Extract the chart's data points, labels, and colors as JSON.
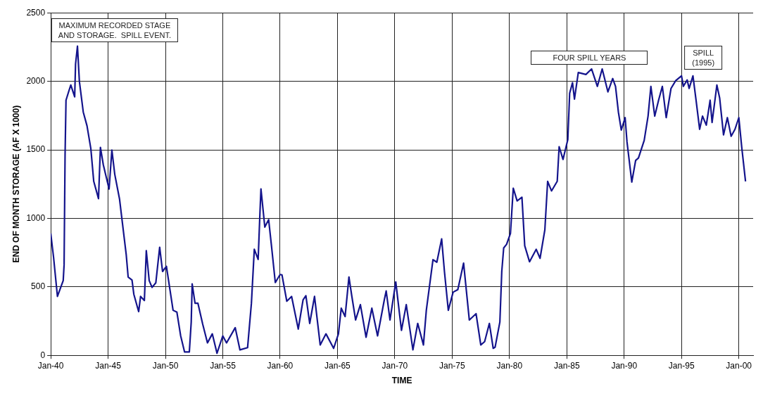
{
  "chart_data": {
    "type": "line",
    "xlabel": "TIME",
    "ylabel": "END OF MONTH STORAGE (AF X 1000)",
    "xlim": [
      "1940-01",
      "2001-04"
    ],
    "ylim": [
      0,
      2500
    ],
    "xticks": [
      {
        "value": "1940-01",
        "label": "Jan-40"
      },
      {
        "value": "1945-01",
        "label": "Jan-45"
      },
      {
        "value": "1950-01",
        "label": "Jan-50"
      },
      {
        "value": "1955-01",
        "label": "Jan-55"
      },
      {
        "value": "1960-01",
        "label": "Jan-60"
      },
      {
        "value": "1965-01",
        "label": "Jan-65"
      },
      {
        "value": "1970-01",
        "label": "Jan-70"
      },
      {
        "value": "1975-01",
        "label": "Jan-75"
      },
      {
        "value": "1980-01",
        "label": "Jan-80"
      },
      {
        "value": "1985-01",
        "label": "Jan-85"
      },
      {
        "value": "1990-01",
        "label": "Jan-90"
      },
      {
        "value": "1995-01",
        "label": "Jan-95"
      },
      {
        "value": "2000-01",
        "label": "Jan-00"
      }
    ],
    "yticks": [
      0,
      500,
      1000,
      1500,
      2000,
      2500
    ],
    "grid": true,
    "legend": false,
    "marker": "none",
    "line_style": "solid",
    "x": [
      "1940-01",
      "1940-04",
      "1940-08",
      "1941-02",
      "1941-03",
      "1941-04",
      "1941-05",
      "1941-08",
      "1941-10",
      "1942-02",
      "1942-03",
      "1942-05",
      "1942-07",
      "1942-11",
      "1943-03",
      "1943-07",
      "1943-10",
      "1944-03",
      "1944-05",
      "1944-08",
      "1945-02",
      "1945-05",
      "1945-08",
      "1946-01",
      "1946-04",
      "1946-08",
      "1946-10",
      "1947-02",
      "1947-04",
      "1947-09",
      "1947-11",
      "1948-03",
      "1948-05",
      "1948-08",
      "1948-11",
      "1949-03",
      "1949-07",
      "1949-10",
      "1950-02",
      "1950-09",
      "1951-01",
      "1951-05",
      "1951-09",
      "1952-02",
      "1952-04",
      "1952-05",
      "1952-08",
      "1952-11",
      "1953-04",
      "1953-09",
      "1954-02",
      "1954-07",
      "1955-01",
      "1955-05",
      "1956-02",
      "1956-07",
      "1957-03",
      "1957-07",
      "1957-10",
      "1958-02",
      "1958-04",
      "1958-05",
      "1958-09",
      "1959-01",
      "1959-04",
      "1959-08",
      "1960-01",
      "1960-03",
      "1960-08",
      "1961-01",
      "1961-08",
      "1962-01",
      "1962-04",
      "1962-08",
      "1963-01",
      "1963-07",
      "1964-01",
      "1964-09",
      "1965-02",
      "1965-05",
      "1965-09",
      "1966-01",
      "1966-04",
      "1966-08",
      "1967-01",
      "1967-07",
      "1968-01",
      "1968-07",
      "1969-02",
      "1969-04",
      "1969-08",
      "1970-02",
      "1970-08",
      "1971-01",
      "1971-08",
      "1972-01",
      "1972-07",
      "1972-10",
      "1973-05",
      "1973-09",
      "1974-02",
      "1974-05",
      "1974-09",
      "1975-02",
      "1975-07",
      "1976-01",
      "1976-07",
      "1977-02",
      "1977-07",
      "1977-11",
      "1978-04",
      "1978-08",
      "1978-10",
      "1979-03",
      "1979-05",
      "1979-07",
      "1979-10",
      "1980-02",
      "1980-05",
      "1980-09",
      "1981-02",
      "1981-05",
      "1981-10",
      "1982-05",
      "1982-09",
      "1983-02",
      "1983-05",
      "1983-09",
      "1984-03",
      "1984-05",
      "1984-09",
      "1985-02",
      "1985-04",
      "1985-07",
      "1985-09",
      "1986-01",
      "1986-09",
      "1987-03",
      "1987-09",
      "1988-02",
      "1988-08",
      "1989-01",
      "1989-04",
      "1989-07",
      "1989-10",
      "1990-02",
      "1990-04",
      "1990-09",
      "1991-01",
      "1991-04",
      "1991-10",
      "1992-02",
      "1992-05",
      "1992-09",
      "1993-01",
      "1993-05",
      "1993-09",
      "1994-02",
      "1994-07",
      "1995-01",
      "1995-03",
      "1995-07",
      "1995-09",
      "1996-01",
      "1996-04",
      "1996-08",
      "1996-11",
      "1997-03",
      "1997-07",
      "1997-09",
      "1998-02",
      "1998-05",
      "1998-09",
      "1999-01",
      "1999-05",
      "1999-09",
      "2000-01",
      "2000-04",
      "2000-08"
    ],
    "series": [
      {
        "color": "#14148c",
        "values": [
          890,
          713,
          430,
          546,
          660,
          1457,
          1862,
          1930,
          1973,
          1887,
          2125,
          2257,
          2000,
          1776,
          1675,
          1508,
          1270,
          1144,
          1518,
          1391,
          1214,
          1498,
          1321,
          1139,
          967,
          734,
          572,
          550,
          445,
          319,
          430,
          400,
          764,
          546,
          496,
          530,
          789,
          612,
          650,
          329,
          315,
          142,
          25,
          25,
          243,
          521,
          380,
          380,
          228,
          91,
          157,
          15,
          142,
          91,
          202,
          40,
          56,
          380,
          774,
          700,
          1052,
          1214,
          936,
          990,
          800,
          531,
          590,
          587,
          395,
          430,
          192,
          405,
          435,
          233,
          430,
          76,
          157,
          51,
          157,
          344,
          283,
          572,
          435,
          258,
          370,
          132,
          344,
          142,
          405,
          470,
          258,
          536,
          182,
          370,
          40,
          233,
          76,
          329,
          698,
          680,
          850,
          612,
          329,
          461,
          480,
          673,
          258,
          304,
          76,
          100,
          233,
          51,
          60,
          243,
          612,
          784,
          810,
          890,
          1220,
          1127,
          1154,
          800,
          683,
          774,
          708,
          916,
          1270,
          1200,
          1270,
          1523,
          1430,
          1574,
          1913,
          1990,
          1870,
          2064,
          2050,
          2090,
          1963,
          2090,
          1923,
          2020,
          1963,
          1776,
          1644,
          1735,
          1558,
          1265,
          1422,
          1440,
          1569,
          1746,
          1963,
          1746,
          1862,
          1963,
          1735,
          1948,
          2005,
          2040,
          1963,
          2010,
          1948,
          2040,
          1877,
          1650,
          1746,
          1680,
          1862,
          1700,
          1973,
          1877,
          1609,
          1735,
          1599,
          1650,
          1735,
          1523,
          1270
        ]
      }
    ],
    "annotations": [
      "MAXIMUM RECORDED STAGE\nAND STORAGE.  SPILL EVENT.",
      "FOUR SPILL YEARS",
      "SPILL\n(1995)"
    ]
  }
}
